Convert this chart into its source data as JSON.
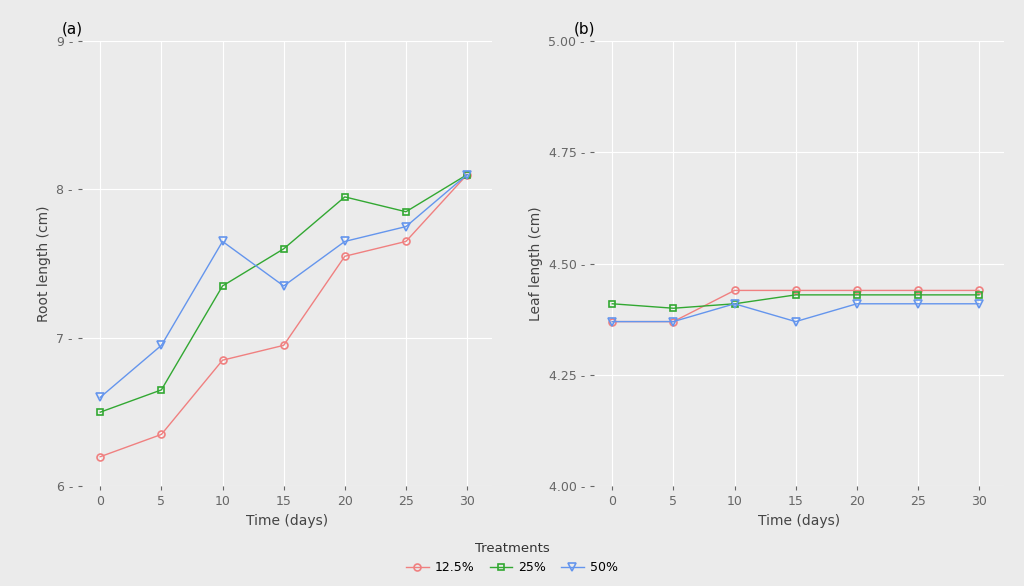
{
  "x": [
    0,
    5,
    10,
    15,
    20,
    25,
    30
  ],
  "root_12_5": [
    6.2,
    6.35,
    6.85,
    6.95,
    7.55,
    7.65,
    8.1
  ],
  "root_25": [
    6.5,
    6.65,
    7.35,
    7.6,
    7.95,
    7.85,
    8.1
  ],
  "root_50": [
    6.6,
    6.95,
    7.65,
    7.35,
    7.65,
    7.75,
    8.1
  ],
  "leaf_12_5": [
    4.37,
    4.37,
    4.44,
    4.44,
    4.44,
    4.44,
    4.44
  ],
  "leaf_25": [
    4.41,
    4.4,
    4.41,
    4.43,
    4.43,
    4.43,
    4.43
  ],
  "leaf_50": [
    4.37,
    4.37,
    4.41,
    4.37,
    4.41,
    4.41,
    4.41
  ],
  "color_12_5": "#f08080",
  "color_25": "#32a832",
  "color_50": "#6495ed",
  "bg_color": "#ebebeb",
  "label_12_5": "12.5%",
  "label_25": "25%",
  "label_50": "50%",
  "ylabel_a": "Root length (cm)",
  "ylabel_b": "Leaf length (cm)",
  "xlabel": "Time (days)",
  "panel_a": "(a)",
  "panel_b": "(b)",
  "legend_title": "Treatments",
  "ylim_a": [
    6.0,
    9.0
  ],
  "ylim_b": [
    4.0,
    5.0
  ],
  "yticks_a": [
    6,
    7,
    8,
    9
  ],
  "yticks_b": [
    4.0,
    4.25,
    4.5,
    4.75,
    5.0
  ],
  "xticks": [
    0,
    5,
    10,
    15,
    20,
    25,
    30
  ],
  "tick_label_color": "#666666",
  "axis_label_color": "#444444",
  "grid_color": "#ffffff",
  "tick_fontsize": 9,
  "axis_label_fontsize": 10,
  "panel_fontsize": 11
}
